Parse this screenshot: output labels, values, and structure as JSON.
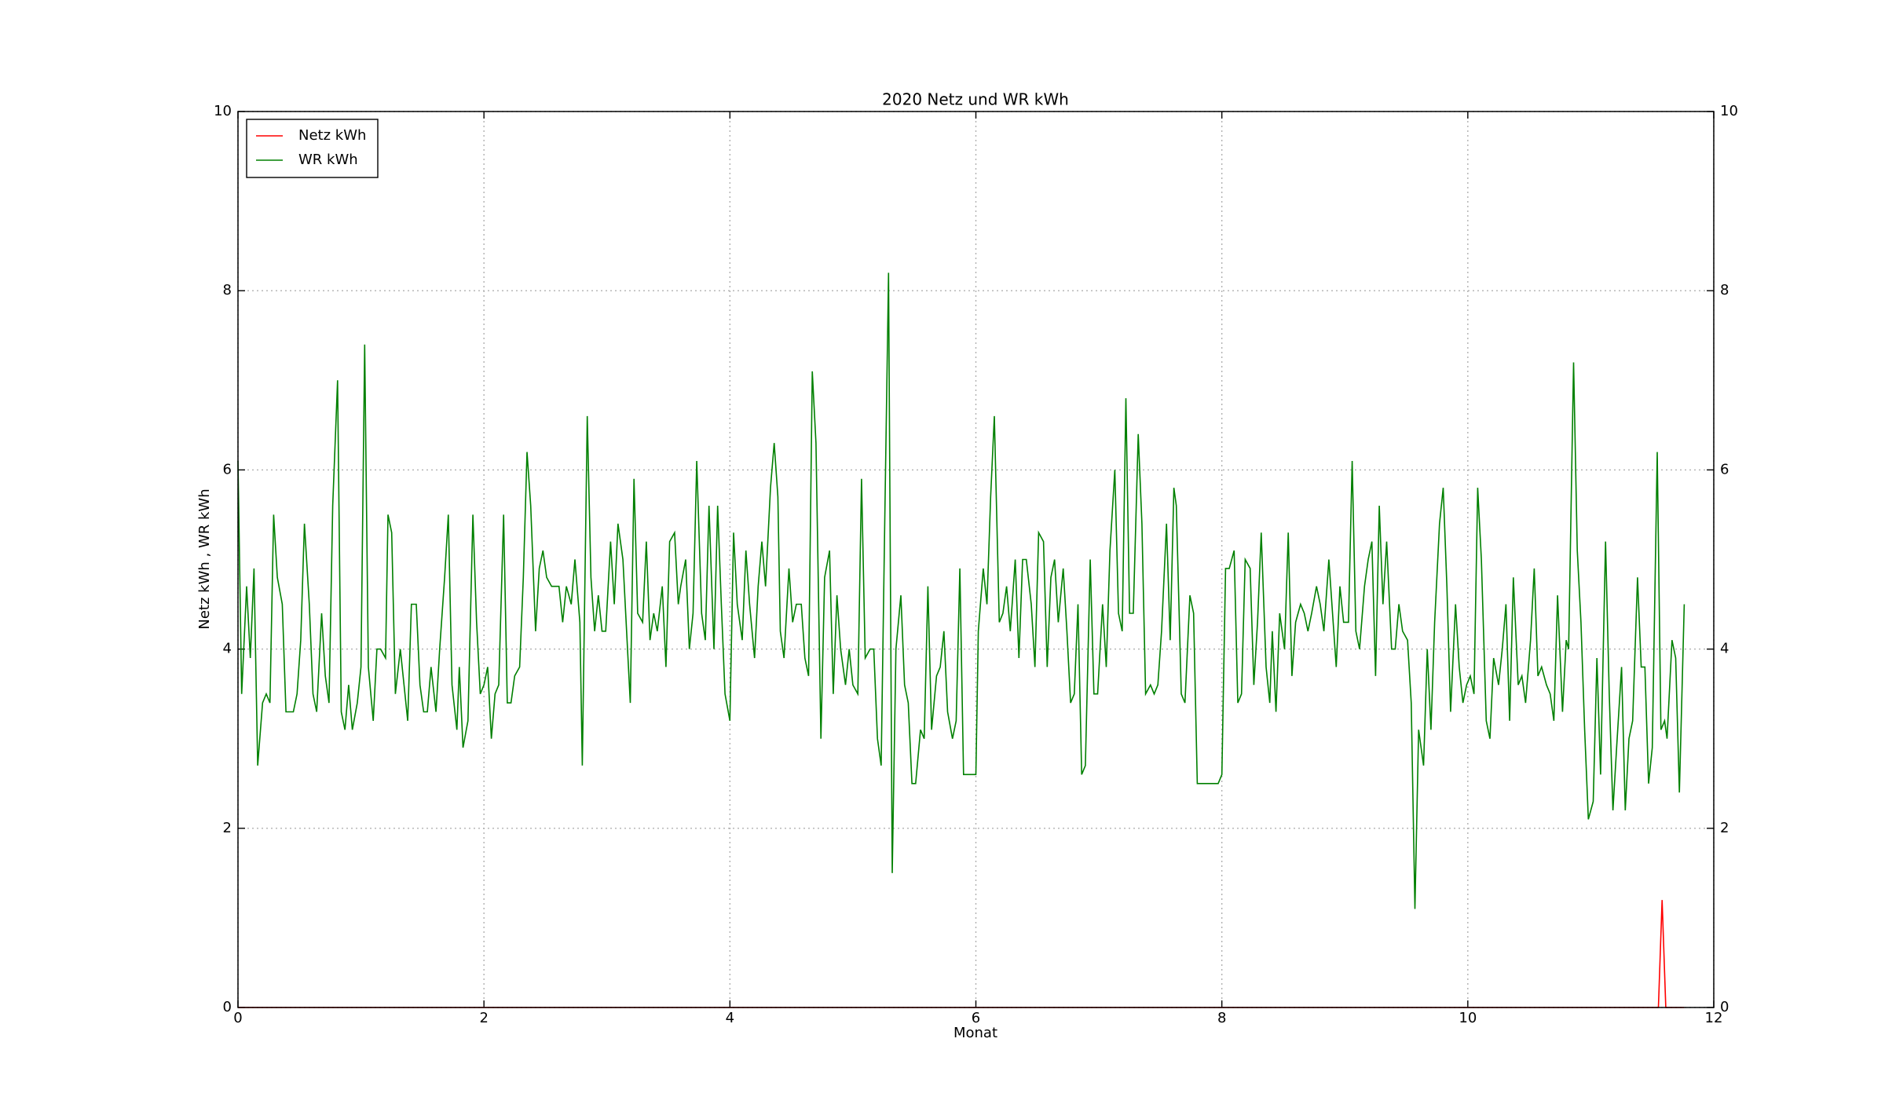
{
  "chart_data": {
    "type": "line",
    "title": "2020 Netz und WR kWh",
    "xlabel": "Monat",
    "ylabel": "Netz kWh , WR kWh",
    "xlim": [
      0,
      12
    ],
    "xticks": [
      0,
      2,
      4,
      6,
      8,
      10,
      12
    ],
    "ylim": [
      0,
      10
    ],
    "yticks": [
      0,
      2,
      4,
      6,
      8,
      10
    ],
    "y2lim": [
      0,
      10
    ],
    "y2ticks": [
      0,
      2,
      4,
      6,
      8,
      10
    ],
    "grid": true,
    "legend": "upper left",
    "series": [
      {
        "name": "Netz kWh",
        "color": "#ff0000",
        "x": [
          0,
          11.55,
          11.58,
          11.61,
          11.76
        ],
        "values": [
          0,
          0,
          1.2,
          0,
          0
        ]
      },
      {
        "name": "WR kWh",
        "color": "#008000",
        "x": [
          0,
          0.03,
          0.07,
          0.1,
          0.13,
          0.16,
          0.2,
          0.23,
          0.26,
          0.29,
          0.32,
          0.36,
          0.39,
          0.45,
          0.48,
          0.51,
          0.54,
          0.58,
          0.61,
          0.64,
          0.68,
          0.71,
          0.74,
          0.77,
          0.81,
          0.84,
          0.87,
          0.9,
          0.93,
          0.97,
          1.0,
          1.03,
          1.06,
          1.1,
          1.13,
          1.16,
          1.2,
          1.22,
          1.25,
          1.28,
          1.32,
          1.35,
          1.38,
          1.41,
          1.45,
          1.48,
          1.51,
          1.54,
          1.57,
          1.61,
          1.64,
          1.68,
          1.71,
          1.74,
          1.78,
          1.8,
          1.83,
          1.87,
          1.91,
          1.94,
          1.97,
          2.0,
          2.03,
          2.06,
          2.09,
          2.12,
          2.16,
          2.19,
          2.22,
          2.25,
          2.29,
          2.32,
          2.35,
          2.38,
          2.42,
          2.45,
          2.48,
          2.51,
          2.55,
          2.61,
          2.64,
          2.67,
          2.71,
          2.74,
          2.78,
          2.8,
          2.84,
          2.87,
          2.9,
          2.93,
          2.96,
          2.99,
          3.03,
          3.06,
          3.09,
          3.13,
          3.16,
          3.19,
          3.22,
          3.25,
          3.29,
          3.32,
          3.35,
          3.38,
          3.41,
          3.45,
          3.48,
          3.51,
          3.55,
          3.58,
          3.6,
          3.64,
          3.67,
          3.7,
          3.73,
          3.77,
          3.8,
          3.83,
          3.87,
          3.9,
          3.93,
          3.96,
          4.0,
          4.03,
          4.06,
          4.1,
          4.13,
          4.16,
          4.2,
          4.23,
          4.26,
          4.29,
          4.33,
          4.36,
          4.39,
          4.41,
          4.44,
          4.48,
          4.51,
          4.54,
          4.58,
          4.61,
          4.64,
          4.67,
          4.7,
          4.74,
          4.77,
          4.81,
          4.84,
          4.87,
          4.9,
          4.94,
          4.97,
          5.0,
          5.04,
          5.07,
          5.1,
          5.14,
          5.17,
          5.2,
          5.23,
          5.26,
          5.29,
          5.32,
          5.35,
          5.39,
          5.42,
          5.45,
          5.48,
          5.51,
          5.55,
          5.58,
          5.61,
          5.64,
          5.68,
          5.71,
          5.74,
          5.77,
          5.81,
          5.84,
          5.87,
          5.9,
          5.97,
          6.0,
          6.02,
          6.06,
          6.09,
          6.12,
          6.15,
          6.19,
          6.22,
          6.25,
          6.28,
          6.32,
          6.35,
          6.38,
          6.41,
          6.45,
          6.48,
          6.51,
          6.55,
          6.58,
          6.61,
          6.64,
          6.67,
          6.71,
          6.74,
          6.77,
          6.8,
          6.83,
          6.86,
          6.89,
          6.93,
          6.96,
          6.99,
          7.03,
          7.06,
          7.09,
          7.13,
          7.16,
          7.19,
          7.22,
          7.25,
          7.28,
          7.32,
          7.35,
          7.38,
          7.42,
          7.45,
          7.48,
          7.51,
          7.55,
          7.58,
          7.61,
          7.63,
          7.67,
          7.7,
          7.74,
          7.77,
          7.8,
          7.97,
          8.0,
          8.03,
          8.06,
          8.1,
          8.13,
          8.16,
          8.19,
          8.23,
          8.26,
          8.29,
          8.32,
          8.36,
          8.39,
          8.41,
          8.44,
          8.47,
          8.51,
          8.54,
          8.57,
          8.6,
          8.64,
          8.67,
          8.7,
          8.73,
          8.77,
          8.8,
          8.83,
          8.87,
          8.9,
          8.93,
          8.96,
          8.99,
          9.03,
          9.06,
          9.09,
          9.12,
          9.16,
          9.19,
          9.22,
          9.25,
          9.28,
          9.31,
          9.34,
          9.38,
          9.41,
          9.44,
          9.47,
          9.51,
          9.54,
          9.57,
          9.6,
          9.64,
          9.67,
          9.7,
          9.73,
          9.77,
          9.8,
          9.83,
          9.86,
          9.9,
          9.93,
          9.96,
          9.99,
          10.02,
          10.05,
          10.08,
          10.11,
          10.15,
          10.18,
          10.21,
          10.25,
          10.28,
          10.31,
          10.34,
          10.37,
          10.41,
          10.44,
          10.47,
          10.51,
          10.54,
          10.57,
          10.6,
          10.64,
          10.67,
          10.7,
          10.73,
          10.77,
          10.8,
          10.82,
          10.86,
          10.89,
          10.92,
          10.95,
          10.98,
          11.02,
          11.05,
          11.08,
          11.12,
          11.15,
          11.18,
          11.21,
          11.25,
          11.28,
          11.31,
          11.34,
          11.38,
          11.41,
          11.44,
          11.47,
          11.5,
          11.54,
          11.57,
          11.6,
          11.62,
          11.66,
          11.69,
          11.72,
          11.76
        ],
        "values": [
          6.1,
          3.5,
          4.7,
          3.9,
          4.9,
          2.7,
          3.4,
          3.5,
          3.4,
          5.5,
          4.8,
          4.5,
          3.3,
          3.3,
          3.5,
          4.1,
          5.4,
          4.5,
          3.5,
          3.3,
          4.4,
          3.7,
          3.4,
          5.6,
          7.0,
          3.3,
          3.1,
          3.6,
          3.1,
          3.4,
          3.8,
          7.4,
          3.8,
          3.2,
          4.0,
          4.0,
          3.9,
          5.5,
          5.3,
          3.5,
          4.0,
          3.6,
          3.2,
          4.5,
          4.5,
          3.6,
          3.3,
          3.3,
          3.8,
          3.3,
          4.0,
          4.8,
          5.5,
          3.6,
          3.1,
          3.8,
          2.9,
          3.2,
          5.5,
          4.3,
          3.5,
          3.6,
          3.8,
          3.0,
          3.5,
          3.6,
          5.5,
          3.4,
          3.4,
          3.7,
          3.8,
          4.8,
          6.2,
          5.6,
          4.2,
          4.9,
          5.1,
          4.8,
          4.7,
          4.7,
          4.3,
          4.7,
          4.5,
          5.0,
          4.3,
          2.7,
          6.6,
          4.8,
          4.2,
          4.6,
          4.2,
          4.2,
          5.2,
          4.5,
          5.4,
          5.0,
          4.2,
          3.4,
          5.9,
          4.4,
          4.3,
          5.2,
          4.1,
          4.4,
          4.2,
          4.7,
          3.8,
          5.2,
          5.3,
          4.5,
          4.7,
          5.0,
          4.0,
          4.4,
          6.1,
          4.4,
          4.1,
          5.6,
          4.0,
          5.6,
          4.5,
          3.5,
          3.2,
          5.3,
          4.5,
          4.1,
          5.1,
          4.5,
          3.9,
          4.7,
          5.2,
          4.7,
          5.8,
          6.3,
          5.7,
          4.2,
          3.9,
          4.9,
          4.3,
          4.5,
          4.5,
          3.9,
          3.7,
          7.1,
          6.3,
          3.0,
          4.8,
          5.1,
          3.5,
          4.6,
          4.0,
          3.6,
          4.0,
          3.6,
          3.5,
          5.9,
          3.9,
          4.0,
          4.0,
          3.0,
          2.7,
          5.5,
          8.2,
          1.5,
          4.0,
          4.6,
          3.6,
          3.4,
          2.5,
          2.5,
          3.1,
          3.0,
          4.7,
          3.1,
          3.7,
          3.8,
          4.2,
          3.3,
          3.0,
          3.2,
          4.9,
          2.6,
          2.6,
          2.6,
          4.2,
          4.9,
          4.5,
          5.7,
          6.6,
          4.3,
          4.4,
          4.7,
          4.2,
          5.0,
          3.9,
          5.0,
          5.0,
          4.5,
          3.8,
          5.3,
          5.2,
          3.8,
          4.8,
          5.0,
          4.3,
          4.9,
          4.2,
          3.4,
          3.5,
          4.5,
          2.6,
          2.7,
          5.0,
          3.5,
          3.5,
          4.5,
          3.8,
          5.1,
          6.0,
          4.4,
          4.2,
          6.8,
          4.4,
          4.4,
          6.4,
          5.4,
          3.5,
          3.6,
          3.5,
          3.6,
          4.2,
          5.4,
          4.1,
          5.8,
          5.6,
          3.5,
          3.4,
          4.6,
          4.4,
          2.5,
          2.5,
          2.6,
          4.9,
          4.9,
          5.1,
          3.4,
          3.5,
          5.0,
          4.9,
          3.6,
          4.3,
          5.3,
          3.8,
          3.4,
          4.2,
          3.3,
          4.4,
          4.0,
          5.3,
          3.7,
          4.3,
          4.5,
          4.4,
          4.2,
          4.4,
          4.7,
          4.5,
          4.2,
          5.0,
          4.4,
          3.8,
          4.7,
          4.3,
          4.3,
          6.1,
          4.2,
          4.0,
          4.7,
          5.0,
          5.2,
          3.7,
          5.6,
          4.5,
          5.2,
          4.0,
          4.0,
          4.5,
          4.2,
          4.1,
          3.4,
          1.1,
          3.1,
          2.7,
          4.0,
          3.1,
          4.3,
          5.4,
          5.8,
          4.7,
          3.3,
          4.5,
          3.8,
          3.4,
          3.6,
          3.7,
          3.5,
          5.8,
          5.0,
          3.2,
          3.0,
          3.9,
          3.6,
          4.0,
          4.5,
          3.2,
          4.8,
          3.6,
          3.7,
          3.4,
          4.1,
          4.9,
          3.7,
          3.8,
          3.6,
          3.5,
          3.2,
          4.6,
          3.3,
          4.1,
          4.0,
          7.2,
          5.1,
          4.3,
          3.1,
          2.1,
          2.3,
          3.9,
          2.6,
          5.2,
          3.5,
          2.2,
          2.9,
          3.8,
          2.2,
          3.0,
          3.2,
          4.8,
          3.8,
          3.8,
          2.5,
          2.9,
          6.2,
          3.1,
          3.2,
          3.0,
          4.1,
          3.9,
          2.4,
          4.5
        ]
      }
    ]
  }
}
